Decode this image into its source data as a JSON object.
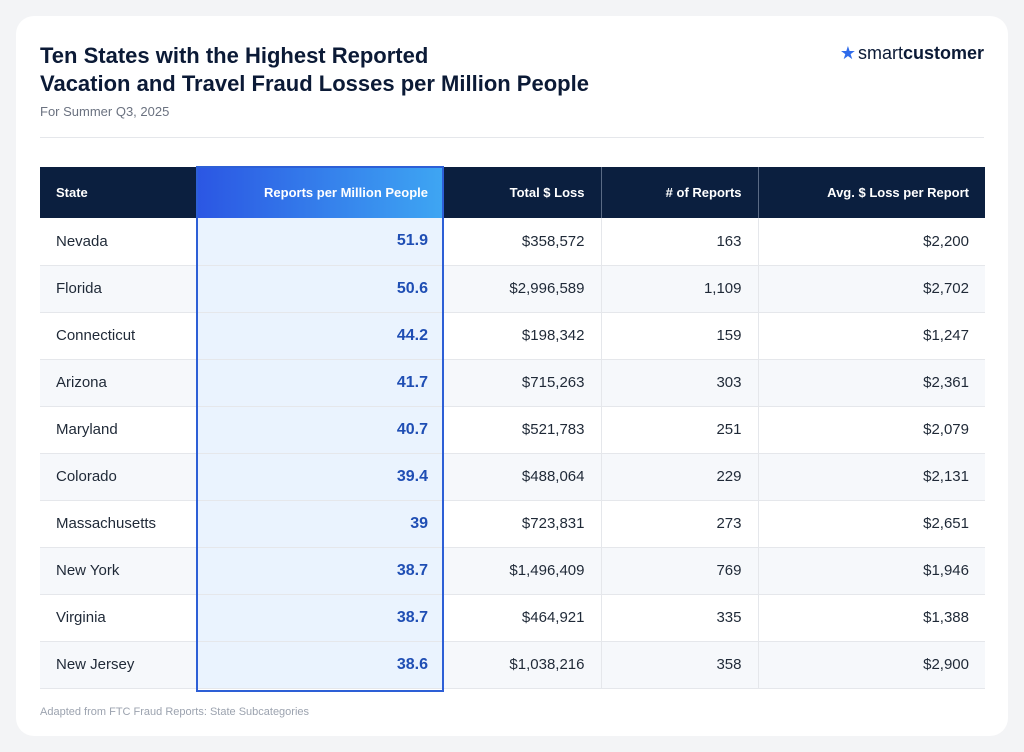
{
  "header": {
    "title_line1": "Ten States with the Highest Reported",
    "title_line2": "Vacation and Travel Fraud Losses per Million People",
    "subtitle": "For Summer Q3, 2025"
  },
  "logo": {
    "word1": "smart",
    "word2": "customer",
    "icon": "star-icon",
    "accent": "#2f6bea"
  },
  "footer": {
    "source": "Adapted from FTC Fraud Reports: State Subcategories"
  },
  "colors": {
    "header_bg": "#0b1f3f",
    "highlight": "#2d5fd6",
    "highlight_text": "#1f4eb4",
    "highlight_fill": "#eaf3fe"
  },
  "chart_data": {
    "type": "table",
    "highlighted_column": "Reports per Million People",
    "columns": [
      "State",
      "Reports per Million People",
      "Total $ Loss",
      "# of Reports",
      "Avg. $ Loss per Report"
    ],
    "rows": [
      [
        "Nevada",
        "51.9",
        "$358,572",
        "163",
        "$2,200"
      ],
      [
        "Florida",
        "50.6",
        "$2,996,589",
        "1,109",
        "$2,702"
      ],
      [
        "Connecticut",
        "44.2",
        "$198,342",
        "159",
        "$1,247"
      ],
      [
        "Arizona",
        "41.7",
        "$715,263",
        "303",
        "$2,361"
      ],
      [
        "Maryland",
        "40.7",
        "$521,783",
        "251",
        "$2,079"
      ],
      [
        "Colorado",
        "39.4",
        "$488,064",
        "229",
        "$2,131"
      ],
      [
        "Massachusetts",
        "39",
        "$723,831",
        "273",
        "$2,651"
      ],
      [
        "New York",
        "38.7",
        "$1,496,409",
        "769",
        "$1,946"
      ],
      [
        "Virginia",
        "38.7",
        "$464,921",
        "335",
        "$1,388"
      ],
      [
        "New Jersey",
        "38.6",
        "$1,038,216",
        "358",
        "$2,900"
      ]
    ]
  }
}
